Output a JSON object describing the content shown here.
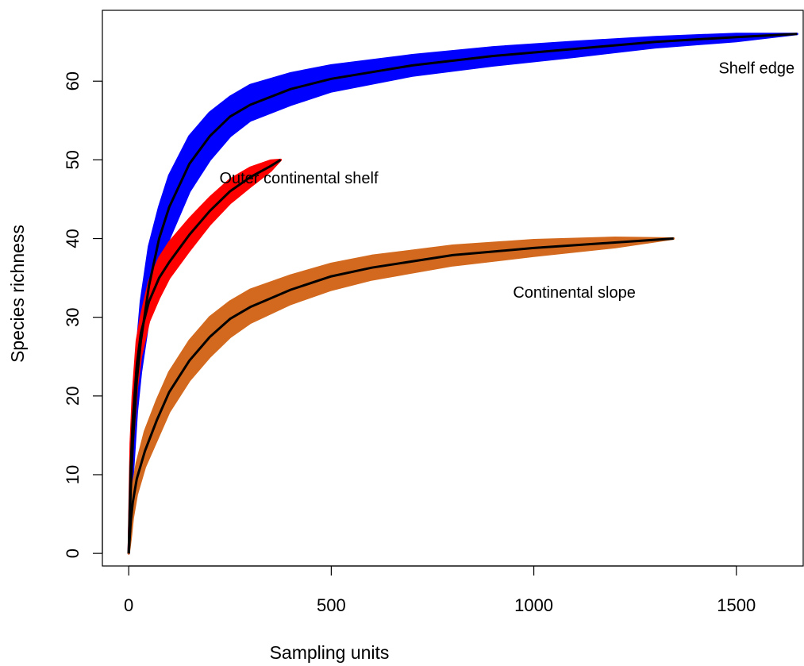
{
  "chart_data": {
    "type": "line",
    "title": "",
    "xlabel": "Sampling units",
    "ylabel": "Species richness",
    "xlim": [
      -65,
      1665
    ],
    "ylim": [
      -1.6,
      69
    ],
    "x_ticks": [
      0,
      500,
      1000,
      1500
    ],
    "y_ticks": [
      0,
      10,
      20,
      30,
      40,
      50,
      60
    ],
    "grid": false,
    "legend": "none",
    "series": [
      {
        "name": "Shelf edge",
        "band_color": "#0000ff",
        "line_color": "#000000",
        "label_at": [
          1550,
          61
        ],
        "points": [
          {
            "x": 0,
            "y": 0,
            "lo": 0,
            "hi": 0
          },
          {
            "x": 5,
            "y": 8,
            "lo": 5,
            "hi": 11
          },
          {
            "x": 10,
            "y": 14,
            "lo": 10,
            "hi": 18
          },
          {
            "x": 20,
            "y": 22,
            "lo": 18,
            "hi": 26
          },
          {
            "x": 30,
            "y": 27,
            "lo": 23,
            "hi": 32
          },
          {
            "x": 50,
            "y": 34,
            "lo": 30,
            "hi": 39
          },
          {
            "x": 75,
            "y": 40,
            "lo": 36,
            "hi": 44
          },
          {
            "x": 100,
            "y": 44,
            "lo": 40,
            "hi": 48
          },
          {
            "x": 150,
            "y": 49.5,
            "lo": 46,
            "hi": 53
          },
          {
            "x": 200,
            "y": 53,
            "lo": 50,
            "hi": 56
          },
          {
            "x": 250,
            "y": 55.5,
            "lo": 53,
            "hi": 58
          },
          {
            "x": 300,
            "y": 57,
            "lo": 55,
            "hi": 59.5
          },
          {
            "x": 400,
            "y": 59,
            "lo": 57,
            "hi": 61
          },
          {
            "x": 500,
            "y": 60.3,
            "lo": 58.7,
            "hi": 62
          },
          {
            "x": 700,
            "y": 62,
            "lo": 60.7,
            "hi": 63.3
          },
          {
            "x": 900,
            "y": 63.2,
            "lo": 62,
            "hi": 64.3
          },
          {
            "x": 1100,
            "y": 64.1,
            "lo": 63.1,
            "hi": 65
          },
          {
            "x": 1300,
            "y": 65,
            "lo": 64.3,
            "hi": 65.6
          },
          {
            "x": 1500,
            "y": 65.6,
            "lo": 65.1,
            "hi": 66
          },
          {
            "x": 1650,
            "y": 66,
            "lo": 66,
            "hi": 66
          }
        ]
      },
      {
        "name": "Outer continental shelf",
        "band_color": "#ff0000",
        "line_color": "#000000",
        "label_at": [
          420,
          47
        ],
        "points": [
          {
            "x": 0,
            "y": 0,
            "lo": 0,
            "hi": 0
          },
          {
            "x": 5,
            "y": 11,
            "lo": 8,
            "hi": 14
          },
          {
            "x": 10,
            "y": 17,
            "lo": 14,
            "hi": 20
          },
          {
            "x": 20,
            "y": 24,
            "lo": 21,
            "hi": 27
          },
          {
            "x": 30,
            "y": 28,
            "lo": 25,
            "hi": 30
          },
          {
            "x": 50,
            "y": 32,
            "lo": 29.5,
            "hi": 34.5
          },
          {
            "x": 75,
            "y": 35,
            "lo": 32.5,
            "hi": 37.5
          },
          {
            "x": 100,
            "y": 37,
            "lo": 35,
            "hi": 39.5
          },
          {
            "x": 150,
            "y": 40.5,
            "lo": 38.5,
            "hi": 42.5
          },
          {
            "x": 200,
            "y": 43.5,
            "lo": 41.8,
            "hi": 45.2
          },
          {
            "x": 250,
            "y": 46,
            "lo": 44.5,
            "hi": 47.5
          },
          {
            "x": 300,
            "y": 47.8,
            "lo": 46.6,
            "hi": 49
          },
          {
            "x": 350,
            "y": 49.2,
            "lo": 48.6,
            "hi": 49.9
          },
          {
            "x": 375,
            "y": 50,
            "lo": 50,
            "hi": 50
          }
        ]
      },
      {
        "name": "Continental slope",
        "band_color": "#d2691e",
        "line_color": "#000000",
        "label_at": [
          1100,
          32.5
        ],
        "points": [
          {
            "x": 0,
            "y": 0,
            "lo": 0,
            "hi": 0
          },
          {
            "x": 5,
            "y": 4,
            "lo": 2,
            "hi": 6
          },
          {
            "x": 10,
            "y": 6.5,
            "lo": 4.5,
            "hi": 8.5
          },
          {
            "x": 20,
            "y": 9.5,
            "lo": 7.5,
            "hi": 11.5
          },
          {
            "x": 40,
            "y": 13,
            "lo": 11,
            "hi": 15.5
          },
          {
            "x": 70,
            "y": 17,
            "lo": 14.5,
            "hi": 19.5
          },
          {
            "x": 100,
            "y": 20.5,
            "lo": 18,
            "hi": 23
          },
          {
            "x": 150,
            "y": 24.5,
            "lo": 22,
            "hi": 27
          },
          {
            "x": 200,
            "y": 27.5,
            "lo": 25,
            "hi": 30
          },
          {
            "x": 250,
            "y": 29.8,
            "lo": 27.5,
            "hi": 32
          },
          {
            "x": 300,
            "y": 31.3,
            "lo": 29.3,
            "hi": 33.5
          },
          {
            "x": 400,
            "y": 33.5,
            "lo": 31.7,
            "hi": 35.3
          },
          {
            "x": 500,
            "y": 35.2,
            "lo": 33.5,
            "hi": 36.8
          },
          {
            "x": 600,
            "y": 36.3,
            "lo": 34.8,
            "hi": 37.8
          },
          {
            "x": 800,
            "y": 37.9,
            "lo": 36.6,
            "hi": 39.1
          },
          {
            "x": 1000,
            "y": 38.8,
            "lo": 37.8,
            "hi": 39.8
          },
          {
            "x": 1200,
            "y": 39.5,
            "lo": 38.9,
            "hi": 40.1
          },
          {
            "x": 1345,
            "y": 40,
            "lo": 40,
            "hi": 40
          }
        ]
      }
    ]
  }
}
